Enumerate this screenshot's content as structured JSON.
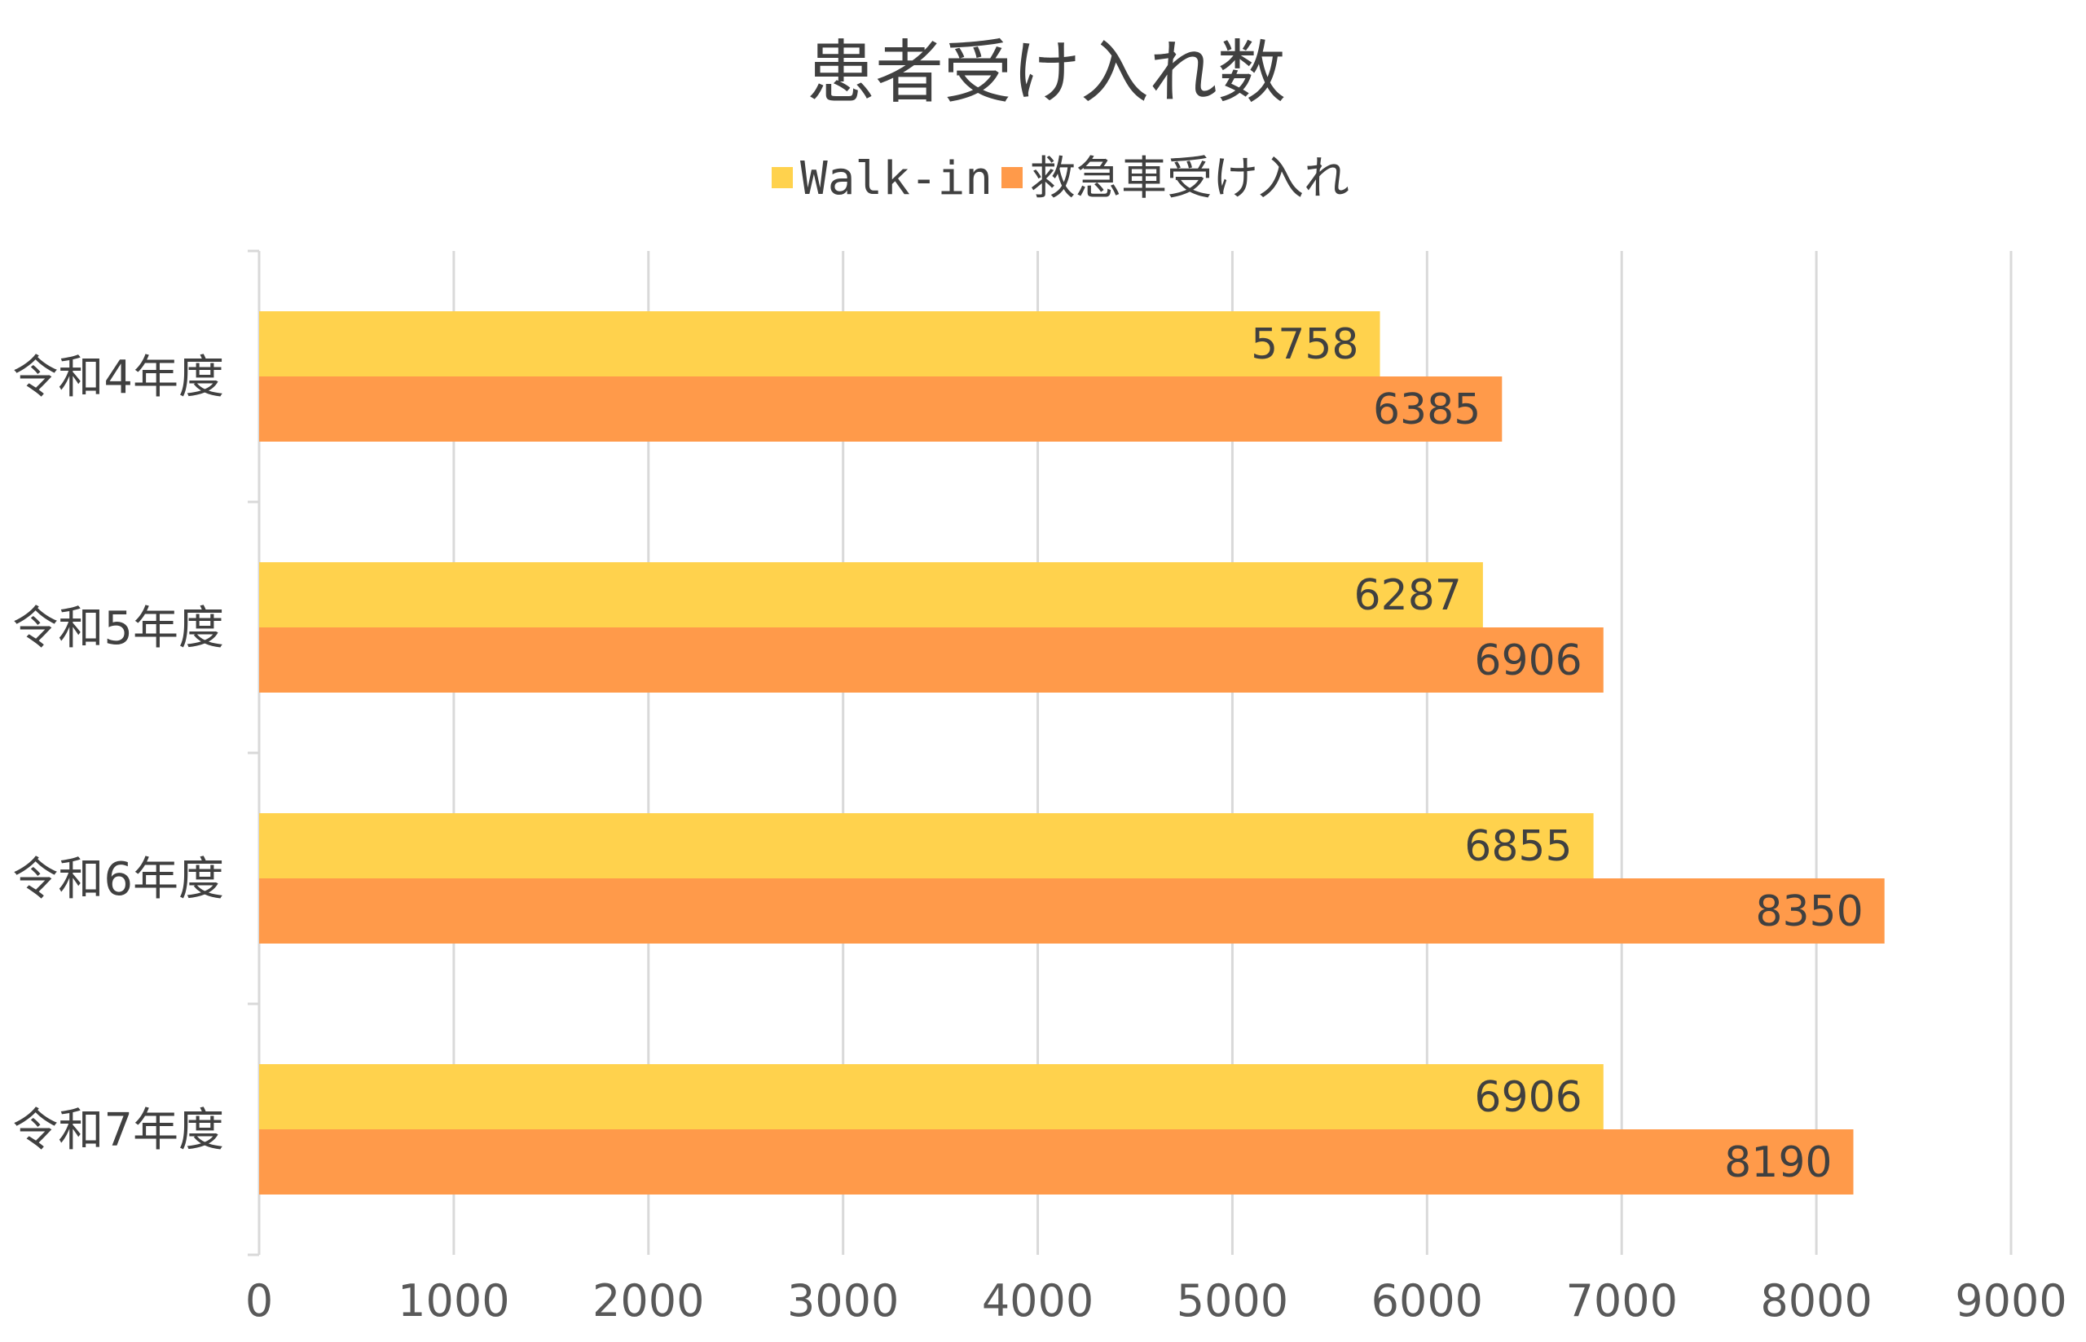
{
  "chart_data": {
    "type": "bar",
    "orientation": "horizontal",
    "title": "患者受け入れ数",
    "categories": [
      "令和4年度",
      "令和5年度",
      "令和6年度",
      "令和7年度"
    ],
    "series": [
      {
        "name": "Walk-in",
        "color": "#FFD24D",
        "values": [
          5758,
          6287,
          6855,
          6906
        ]
      },
      {
        "name": "救急車受け入れ",
        "color": "#FF9A4A",
        "values": [
          6385,
          6906,
          8350,
          8190
        ]
      }
    ],
    "xlim": [
      0,
      9000
    ],
    "x_ticks": [
      0,
      1000,
      2000,
      3000,
      4000,
      5000,
      6000,
      7000,
      8000,
      9000
    ],
    "grid": "vertical",
    "legend_position": "top",
    "data_labels": true
  }
}
